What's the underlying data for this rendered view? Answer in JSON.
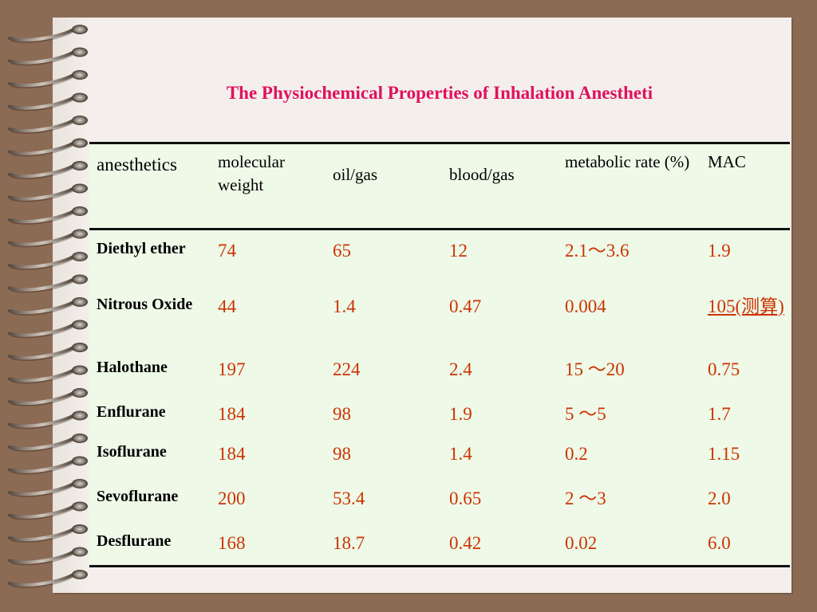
{
  "slide": {
    "title": "The Physiochemical Properties of Inhalation Anestheti"
  },
  "table": {
    "headers": [
      "anesthetics",
      "molecular weight",
      "oil/gas",
      "blood/gas",
      "metabolic rate (%)",
      "MAC"
    ],
    "rows": [
      {
        "name": "Diethyl ether",
        "mw": "74",
        "oil_gas": "65",
        "blood_gas": "12",
        "metabolic": "2.1～3.6",
        "mac": "1.9"
      },
      {
        "name": "Nitrous Oxide",
        "mw": "44",
        "oil_gas": "1.4",
        "blood_gas": "0.47",
        "metabolic": "0.004",
        "mac": "105(测算)"
      },
      {
        "name": "Halothane",
        "mw": "197",
        "oil_gas": "224",
        "blood_gas": "2.4",
        "metabolic": "15 ～20",
        "mac": "0.75"
      },
      {
        "name": "Enflurane",
        "mw": "184",
        "oil_gas": "98",
        "blood_gas": "1.9",
        "metabolic": "5 ～5",
        "mac": "1.7"
      },
      {
        "name": "Isoflurane",
        "mw": "184",
        "oil_gas": "98",
        "blood_gas": "1.4",
        "metabolic": "0.2",
        "mac": "1.15"
      },
      {
        "name": "Sevoflurane",
        "mw": "200",
        "oil_gas": "53.4",
        "blood_gas": "0.65",
        "metabolic": "2 ～3",
        "mac": "2.0"
      },
      {
        "name": "Desflurane",
        "mw": "168",
        "oil_gas": "18.7",
        "blood_gas": "0.42",
        "metabolic": "0.02",
        "mac": "6.0"
      }
    ]
  },
  "colors": {
    "title": "#e0115f",
    "values": "#cc3300",
    "table_bg": "#eef9e8",
    "page_bg": "#f4efec",
    "frame": "#8c6b55"
  },
  "decor": {
    "binding_icon": "spiral-binding-icon"
  }
}
